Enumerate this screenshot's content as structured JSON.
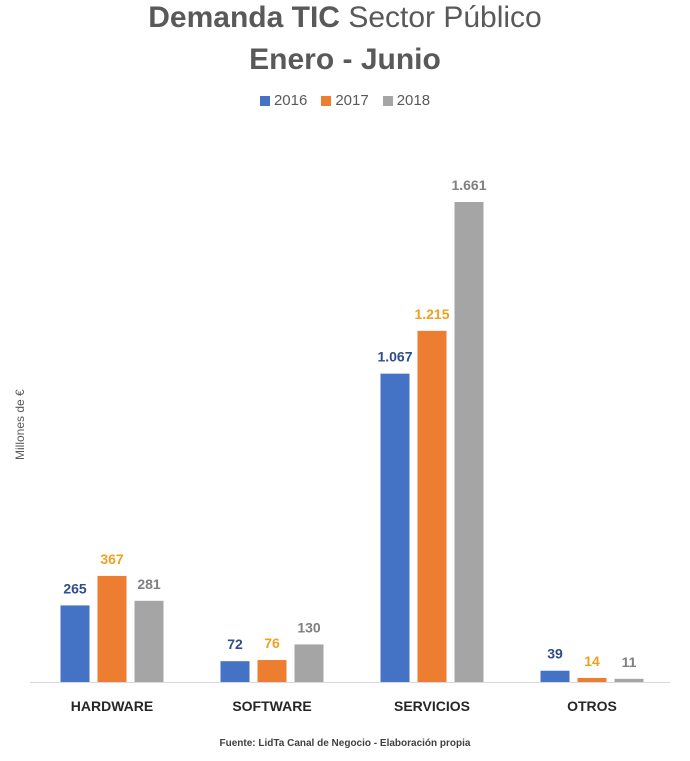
{
  "title_bold": "Demanda TIC",
  "title_light": "Sector Público",
  "subtitle": "Enero - Junio",
  "source": "Fuente: LidTa Canal de Negocio - Elaboración propia",
  "colors": {
    "2016": "#4472C4",
    "2017": "#ED7D31",
    "2018": "#A5A5A5"
  },
  "chart_data": {
    "type": "bar",
    "ylabel": "Millones de €",
    "categories": [
      "HARDWARE",
      "SOFTWARE",
      "SERVICIOS",
      "OTROS"
    ],
    "series": [
      {
        "name": "2016",
        "values": [
          265,
          72,
          1067,
          39
        ],
        "labels": [
          "265",
          "72",
          "1.067",
          "39"
        ]
      },
      {
        "name": "2017",
        "values": [
          367,
          76,
          1215,
          14
        ],
        "labels": [
          "367",
          "76",
          "1.215",
          "14"
        ]
      },
      {
        "name": "2018",
        "values": [
          281,
          130,
          1661,
          11
        ],
        "labels": [
          "281",
          "130",
          "1.661",
          "11"
        ]
      }
    ],
    "ylim": [
      0,
      1700
    ],
    "legend_position": "top",
    "grid": false
  }
}
